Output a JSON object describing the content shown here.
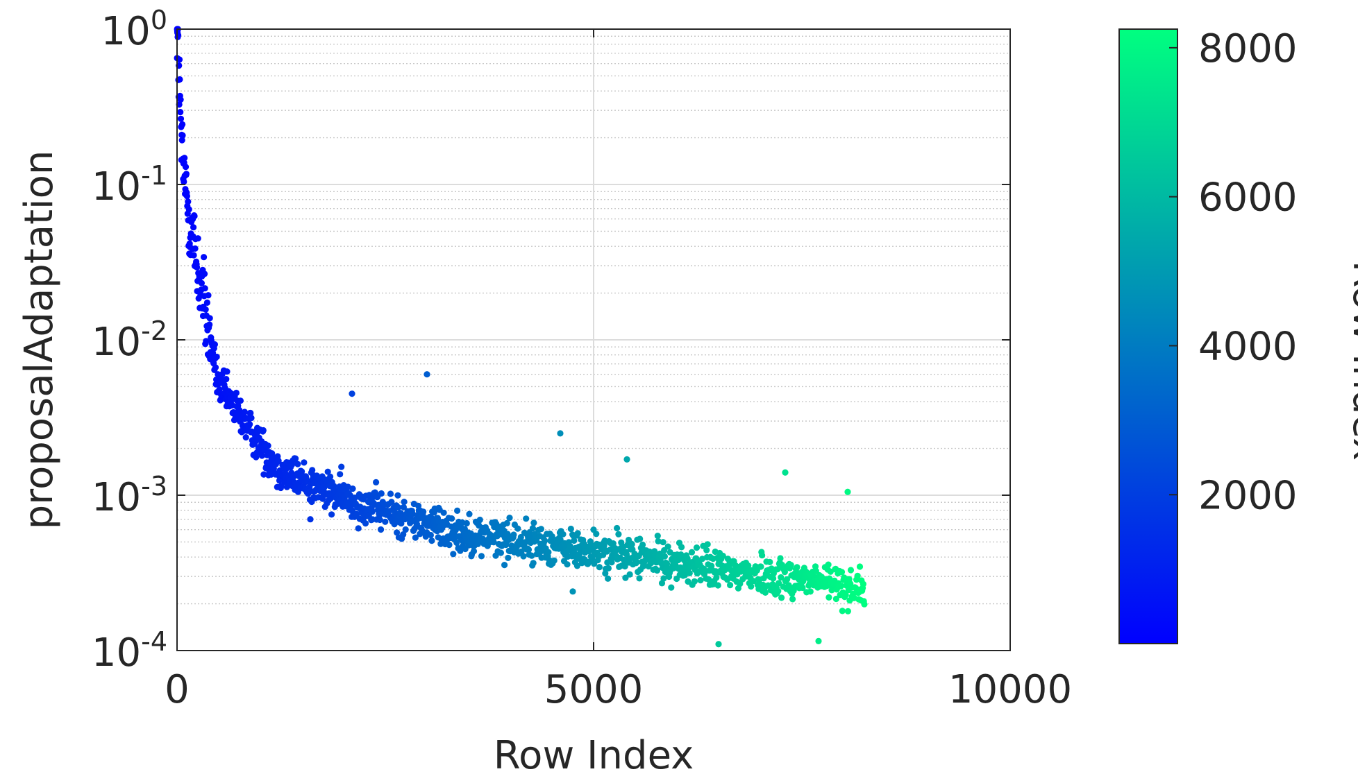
{
  "chart_data": {
    "type": "scatter",
    "xlabel": "Row Index",
    "ylabel": "proposalAdaptation",
    "xlim": [
      0,
      10000
    ],
    "ylim": [
      0.0001,
      1
    ],
    "yscale": "log",
    "grid": true,
    "minor_grid_y": true,
    "x_ticks": [
      "0",
      "5000",
      "10000"
    ],
    "y_ticks": [
      {
        "base": "10",
        "exp": "0"
      },
      {
        "base": "10",
        "exp": "-1"
      },
      {
        "base": "10",
        "exp": "-2"
      },
      {
        "base": "10",
        "exp": "-3"
      },
      {
        "base": "10",
        "exp": "-4"
      }
    ],
    "colorbar": {
      "label": "Row Index",
      "range": [
        1,
        8250
      ],
      "ticks": [
        "2000",
        "4000",
        "6000",
        "8000"
      ],
      "colors": [
        "#0000ff",
        "#00ff80"
      ],
      "placement": "right"
    },
    "n_points": 8250,
    "points_shown": 1400,
    "trend": {
      "description": "median proposalAdaptation per row index",
      "x": [
        1,
        60,
        150,
        300,
        500,
        800,
        1200,
        1800,
        2500,
        3500,
        4500,
        5500,
        6500,
        7500,
        8250
      ],
      "y": [
        1.0,
        0.15,
        0.06,
        0.02,
        0.005,
        0.003,
        0.0015,
        0.00105,
        0.00078,
        0.00056,
        0.00047,
        0.0004,
        0.00033,
        0.00029,
        0.00025
      ]
    },
    "scatter_spread_log10": 0.09,
    "outliers": [
      {
        "x": 3000,
        "y": 0.006
      },
      {
        "x": 2100,
        "y": 0.0045
      },
      {
        "x": 4600,
        "y": 0.0025
      },
      {
        "x": 5400,
        "y": 0.0017
      },
      {
        "x": 7300,
        "y": 0.0014
      },
      {
        "x": 8050,
        "y": 0.00105
      },
      {
        "x": 6500,
        "y": 0.00011
      },
      {
        "x": 7700,
        "y": 0.000115
      },
      {
        "x": 1600,
        "y": 0.0007
      },
      {
        "x": 4750,
        "y": 0.00024
      }
    ]
  }
}
